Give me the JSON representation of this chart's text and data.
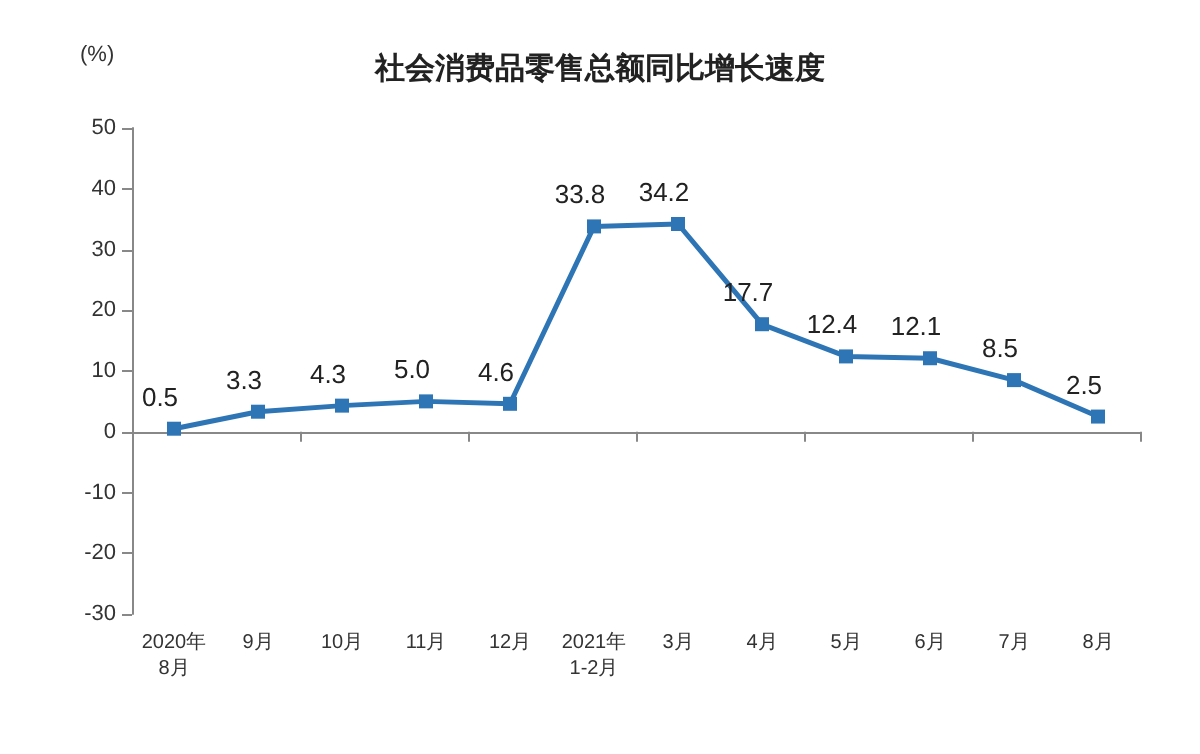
{
  "chart_data": {
    "type": "line",
    "title": "社会消费品零售总额同比增长速度",
    "ylabel": "(%)",
    "categories": [
      "2020年\n8月",
      "9月",
      "10月",
      "11月",
      "12月",
      "2021年\n1-2月",
      "3月",
      "4月",
      "5月",
      "6月",
      "7月",
      "8月"
    ],
    "series": [
      {
        "color": "#2e75b6",
        "values": [
          0.5,
          3.3,
          4.3,
          5.0,
          4.6,
          33.8,
          34.2,
          17.7,
          12.4,
          12.1,
          8.5,
          2.5
        ],
        "value_labels": [
          "0.5",
          "3.3",
          "4.3",
          "5.0",
          "4.6",
          "33.8",
          "34.2",
          "17.7",
          "12.4",
          "12.1",
          "8.5",
          "2.5"
        ]
      }
    ],
    "ylim": [
      -30,
      50
    ],
    "yticks": [
      -30,
      -20,
      -10,
      0,
      10,
      20,
      30,
      40,
      50
    ],
    "marker": "square",
    "line_style": "solid"
  }
}
